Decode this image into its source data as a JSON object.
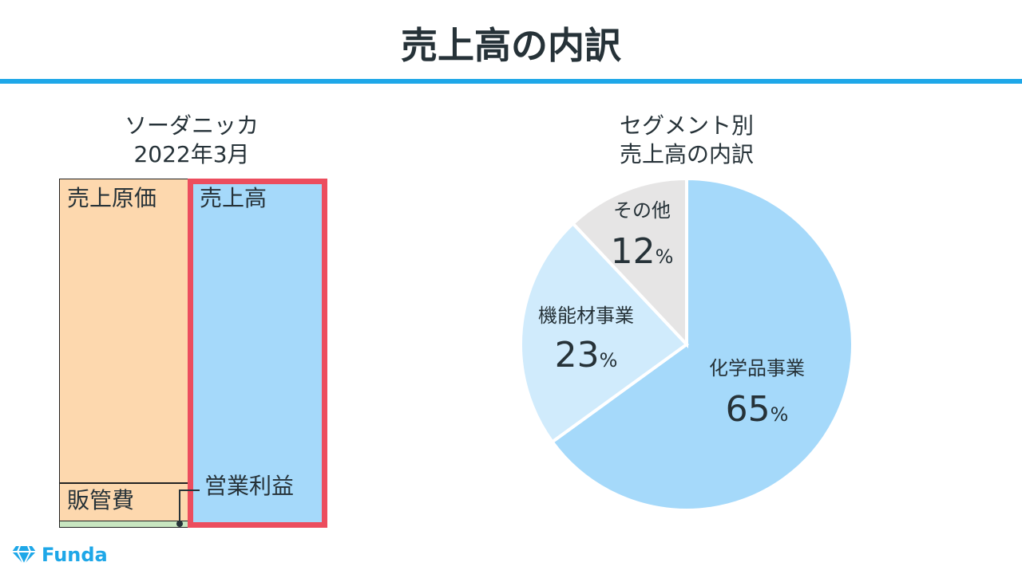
{
  "page": {
    "title": "売上高の内訳",
    "accent_color": "#1ea7e8"
  },
  "left_chart": {
    "company": "ソーダニッカ",
    "period": "2022年3月",
    "colors": {
      "cost": "#fdd8ae",
      "sga": "#fdd8ae",
      "profit": "#c8e6c0",
      "sales": "#a5d9fa",
      "highlight": "#ec4d5e"
    }
  },
  "right_chart": {
    "title_line1": "セグメント別",
    "title_line2": "売上高の内訳"
  },
  "chart_data": [
    {
      "type": "bar",
      "title": "ソーダニッカ 2022年3月",
      "note": "stacked comparison of 売上原価 + 販管費 + 営業利益 versus 売上高 (no values printed)",
      "stack": [
        {
          "name": "売上原価",
          "share": 0.871
        },
        {
          "name": "販管費",
          "share": 0.11
        },
        {
          "name": "営業利益",
          "share": 0.019
        }
      ],
      "total": {
        "name": "売上高",
        "share": 1.0
      }
    },
    {
      "type": "pie",
      "title": "セグメント別 売上高の内訳",
      "unit": "%",
      "slices": [
        {
          "label": "化学品事業",
          "value": 65,
          "color": "#a5d9fa"
        },
        {
          "label": "機能材事業",
          "value": 23,
          "color": "#d0ebfc"
        },
        {
          "label": "その他",
          "value": 12,
          "color": "#e6e5e5"
        }
      ]
    }
  ],
  "logo": {
    "text": "Funda",
    "icon": "diamond-logo-icon",
    "color": "#1ea7e8"
  }
}
